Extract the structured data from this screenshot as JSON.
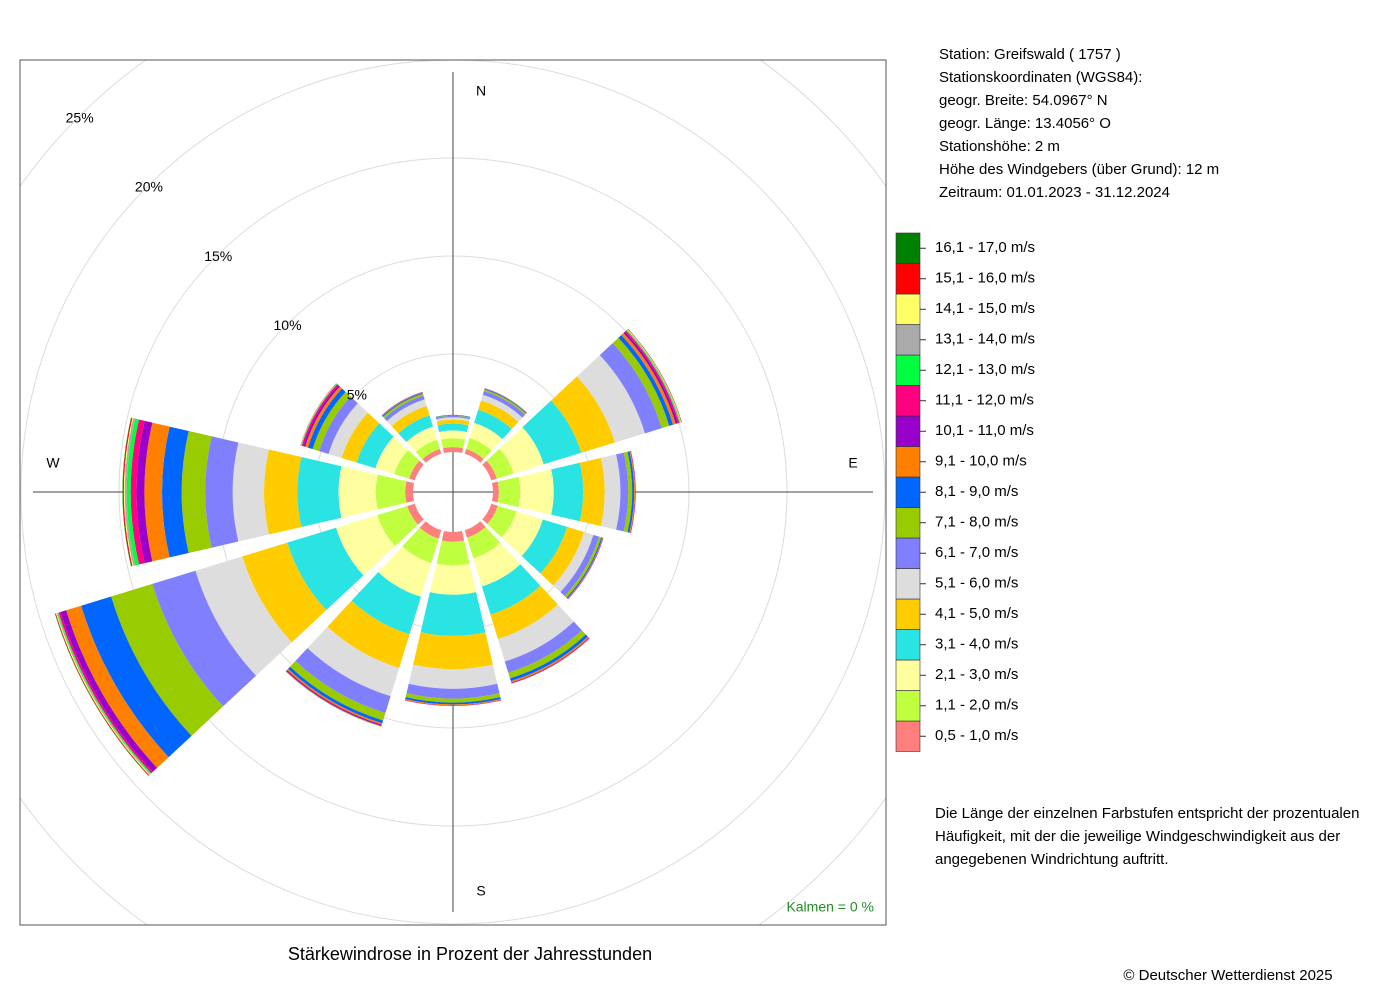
{
  "chart_data": {
    "type": "windrose",
    "title": "Stärkewindrose in Prozent der Jahresstunden",
    "info": [
      "Station:  Greifswald  ( 1757 )",
      "Stationskoordinaten (WGS84):",
      "geogr. Breite: 54.0967° N",
      "geogr. Länge: 13.4056° O",
      "Stationshöhe: 2 m",
      "Höhe des Windgebers (über Grund): 12 m",
      "Zeitraum: 01.01.2023 - 31.12.2024"
    ],
    "note": [
      "Die Länge der einzelnen Farbstufen entspricht der prozentualen",
      "Häufigkeit, mit der die jeweilige Windgeschwindigkeit aus der",
      "angegebenen Windrichtung auftritt."
    ],
    "calms": "Kalmen  =  0 %",
    "copyright": "© Deutscher Wetterdienst  2025",
    "x": [
      0,
      30,
      60,
      90,
      120,
      150,
      180,
      210,
      240,
      270,
      300,
      330
    ],
    "xticks": [
      {
        "value": 0,
        "label": "N"
      },
      {
        "value": 90,
        "label": "E"
      },
      {
        "value": 180,
        "label": "S"
      },
      {
        "value": 270,
        "label": "W"
      }
    ],
    "ylim": [
      0,
      25
    ],
    "yticks": [
      {
        "value": 5,
        "label": "5%"
      },
      {
        "value": 10,
        "label": "10%"
      },
      {
        "value": 15,
        "label": "15%"
      },
      {
        "value": 20,
        "label": "20%"
      },
      {
        "value": 25,
        "label": "25%"
      }
    ],
    "grid": true,
    "series": [
      {
        "name": "0,5 - 1,0 m/s",
        "color": "#ff7f7f",
        "values": [
          0.25,
          0.25,
          0.3,
          0.3,
          0.35,
          0.4,
          0.5,
          0.45,
          0.4,
          0.4,
          0.3,
          0.25
        ]
      },
      {
        "name": "1,1 - 2,0 m/s",
        "color": "#bfff3f",
        "values": [
          0.45,
          0.6,
          0.9,
          1.1,
          1.0,
          1.1,
          1.2,
          1.3,
          1.6,
          1.5,
          0.8,
          0.5
        ]
      },
      {
        "name": "2,1 - 3,0 m/s",
        "color": "#ffffa0",
        "values": [
          0.4,
          0.8,
          1.6,
          1.7,
          1.4,
          1.5,
          1.5,
          1.8,
          2.2,
          1.9,
          1.0,
          0.7
        ]
      },
      {
        "name": "3,1 - 4,0 m/s",
        "color": "#2ae3e3",
        "values": [
          0.35,
          0.7,
          2.0,
          1.5,
          1.3,
          1.5,
          2.1,
          2.0,
          2.6,
          2.1,
          1.0,
          0.6
        ]
      },
      {
        "name": "4,1 - 5,0 m/s",
        "color": "#ffcc00",
        "values": [
          0.2,
          0.5,
          1.8,
          1.1,
          0.9,
          1.3,
          1.7,
          1.8,
          2.4,
          1.7,
          0.8,
          0.5
        ]
      },
      {
        "name": "5,1 - 6,0 m/s",
        "color": "#dddddd",
        "values": [
          0.12,
          0.3,
          1.6,
          0.8,
          0.5,
          1.2,
          1.0,
          1.5,
          2.5,
          1.6,
          0.7,
          0.35
        ]
      },
      {
        "name": "6,1 - 7,0 m/s",
        "color": "#8080ff",
        "values": [
          0.07,
          0.2,
          0.9,
          0.4,
          0.3,
          0.6,
          0.5,
          0.9,
          2.3,
          1.4,
          0.5,
          0.2
        ]
      },
      {
        "name": "7,1 - 8,0 m/s",
        "color": "#99cc00",
        "values": [
          0.03,
          0.08,
          0.4,
          0.2,
          0.12,
          0.3,
          0.2,
          0.4,
          2.2,
          1.2,
          0.35,
          0.1
        ]
      },
      {
        "name": "8,1 - 9,0 m/s",
        "color": "#0066ff",
        "values": [
          0.02,
          0.04,
          0.2,
          0.1,
          0.06,
          0.15,
          0.1,
          0.15,
          1.6,
          1.0,
          0.25,
          0.05
        ]
      },
      {
        "name": "9,1 - 10,0 m/s",
        "color": "#ff8000",
        "values": [
          0.01,
          0.02,
          0.15,
          0.05,
          0.03,
          0.08,
          0.05,
          0.08,
          0.8,
          0.9,
          0.15,
          0.03
        ]
      },
      {
        "name": "10,1 - 11,0 m/s",
        "color": "#9900cc",
        "values": [
          0,
          0.01,
          0.1,
          0.02,
          0.02,
          0.03,
          0.02,
          0.05,
          0.3,
          0.4,
          0.1,
          0.02
        ]
      },
      {
        "name": "11,1 - 12,0 m/s",
        "color": "#ff0080",
        "values": [
          0,
          0,
          0.08,
          0.01,
          0.01,
          0.02,
          0.01,
          0.03,
          0.1,
          0.3,
          0.08,
          0
        ]
      },
      {
        "name": "12,1 - 13,0 m/s",
        "color": "#00ff40",
        "values": [
          0,
          0,
          0.05,
          0,
          0,
          0.01,
          0,
          0.02,
          0.05,
          0.2,
          0.03,
          0
        ]
      },
      {
        "name": "13,1 - 14,0 m/s",
        "color": "#aaaaaa",
        "values": [
          0,
          0,
          0.03,
          0,
          0,
          0,
          0,
          0.01,
          0.05,
          0.1,
          0.02,
          0
        ]
      },
      {
        "name": "14,1 - 15,0 m/s",
        "color": "#ffff66",
        "values": [
          0,
          0,
          0.03,
          0,
          0,
          0,
          0,
          0.01,
          0.05,
          0.05,
          0.01,
          0
        ]
      },
      {
        "name": "15,1 - 16,0 m/s",
        "color": "#ff0000",
        "values": [
          0,
          0,
          0.02,
          0,
          0,
          0,
          0,
          0,
          0.03,
          0.05,
          0.01,
          0
        ]
      },
      {
        "name": "16,1 - 17,0 m/s",
        "color": "#008000",
        "values": [
          0,
          0,
          0.01,
          0,
          0,
          0,
          0,
          0,
          0.02,
          0.02,
          0,
          0
        ]
      }
    ]
  }
}
